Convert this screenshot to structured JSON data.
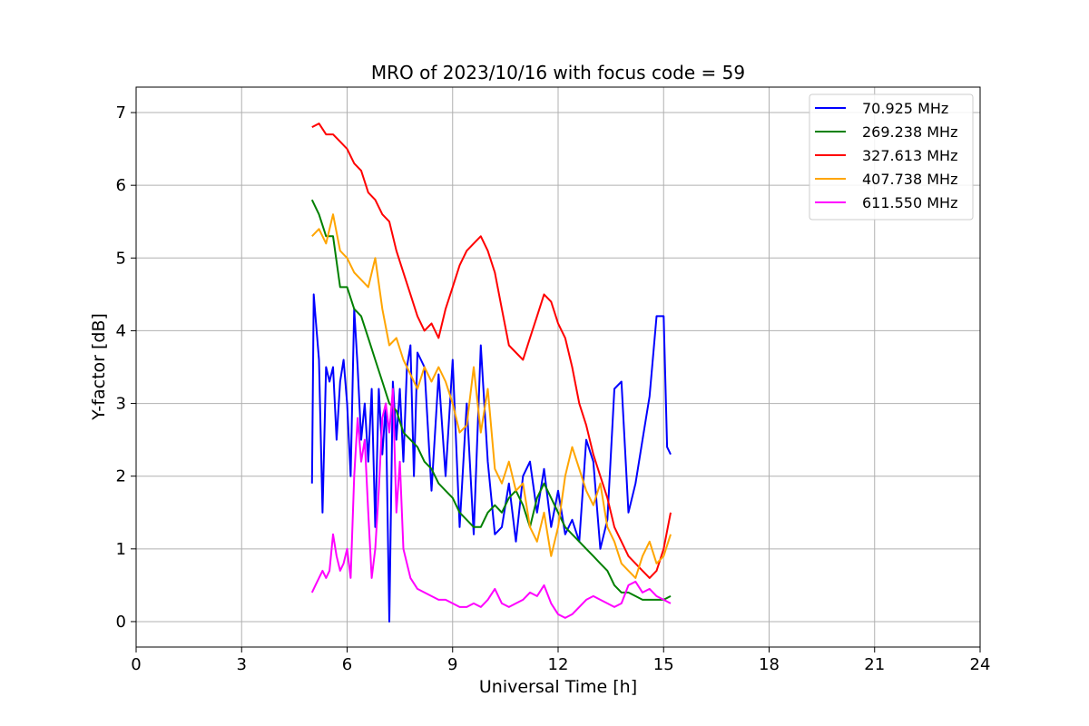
{
  "chart_data": {
    "type": "line",
    "title": "MRO of 2023/10/16 with focus code = 59",
    "xlabel": "Universal Time [h]",
    "ylabel": "Y-factor [dB]",
    "xlim": [
      0,
      24
    ],
    "ylim": [
      -0.35,
      7.35
    ],
    "xticks": [
      0,
      3,
      6,
      9,
      12,
      15,
      18,
      21,
      24
    ],
    "yticks": [
      0,
      1,
      2,
      3,
      4,
      5,
      6,
      7
    ],
    "grid": true,
    "legend_position": "top-right",
    "series": [
      {
        "name": " 70.925 MHz",
        "color": "#0000ff",
        "x": [
          5.0,
          5.05,
          5.1,
          5.2,
          5.3,
          5.4,
          5.5,
          5.6,
          5.7,
          5.8,
          5.9,
          6.0,
          6.1,
          6.2,
          6.3,
          6.4,
          6.5,
          6.6,
          6.7,
          6.8,
          6.9,
          7.0,
          7.1,
          7.2,
          7.3,
          7.4,
          7.5,
          7.6,
          7.7,
          7.8,
          7.9,
          8.0,
          8.2,
          8.4,
          8.6,
          8.8,
          9.0,
          9.2,
          9.4,
          9.6,
          9.8,
          10.0,
          10.2,
          10.4,
          10.6,
          10.8,
          11.0,
          11.2,
          11.4,
          11.6,
          11.8,
          12.0,
          12.2,
          12.4,
          12.6,
          12.8,
          13.0,
          13.2,
          13.4,
          13.6,
          13.8,
          14.0,
          14.2,
          14.4,
          14.6,
          14.8,
          15.0,
          15.1,
          15.2
        ],
        "values": [
          1.9,
          4.5,
          4.2,
          3.6,
          1.5,
          3.5,
          3.3,
          3.5,
          2.5,
          3.3,
          3.6,
          3.0,
          2.0,
          4.3,
          3.5,
          2.5,
          3.0,
          2.2,
          3.2,
          1.3,
          3.2,
          2.3,
          3.0,
          0.0,
          3.3,
          2.5,
          3.2,
          2.2,
          3.5,
          3.8,
          2.0,
          3.7,
          3.5,
          1.8,
          3.4,
          2.0,
          3.6,
          1.3,
          3.0,
          1.2,
          3.8,
          2.2,
          1.2,
          1.3,
          1.9,
          1.1,
          2.0,
          2.2,
          1.5,
          2.1,
          1.3,
          1.8,
          1.2,
          1.4,
          1.1,
          2.5,
          2.2,
          1.0,
          1.4,
          3.2,
          3.3,
          1.5,
          1.9,
          2.5,
          3.1,
          4.2,
          4.2,
          2.4,
          2.3
        ]
      },
      {
        "name": "269.238 MHz",
        "color": "#008000",
        "x": [
          5.0,
          5.2,
          5.4,
          5.6,
          5.8,
          6.0,
          6.2,
          6.4,
          6.6,
          6.8,
          7.0,
          7.2,
          7.4,
          7.6,
          7.8,
          8.0,
          8.2,
          8.4,
          8.6,
          8.8,
          9.0,
          9.2,
          9.4,
          9.6,
          9.8,
          10.0,
          10.2,
          10.4,
          10.6,
          10.8,
          11.0,
          11.2,
          11.4,
          11.6,
          11.8,
          12.0,
          12.2,
          12.4,
          12.6,
          12.8,
          13.0,
          13.2,
          13.4,
          13.6,
          13.8,
          14.0,
          14.2,
          14.4,
          14.6,
          14.8,
          15.0,
          15.2
        ],
        "values": [
          5.8,
          5.6,
          5.3,
          5.3,
          4.6,
          4.6,
          4.3,
          4.2,
          3.9,
          3.6,
          3.3,
          3.0,
          2.9,
          2.6,
          2.5,
          2.4,
          2.2,
          2.1,
          1.9,
          1.8,
          1.7,
          1.5,
          1.4,
          1.3,
          1.3,
          1.5,
          1.6,
          1.5,
          1.7,
          1.8,
          1.6,
          1.3,
          1.7,
          1.9,
          1.7,
          1.5,
          1.3,
          1.2,
          1.1,
          1.0,
          0.9,
          0.8,
          0.7,
          0.5,
          0.4,
          0.4,
          0.35,
          0.3,
          0.3,
          0.3,
          0.3,
          0.35
        ]
      },
      {
        "name": "327.613 MHz",
        "color": "#ff0000",
        "x": [
          5.0,
          5.2,
          5.4,
          5.6,
          5.8,
          6.0,
          6.2,
          6.4,
          6.6,
          6.8,
          7.0,
          7.2,
          7.4,
          7.6,
          7.8,
          8.0,
          8.2,
          8.4,
          8.6,
          8.8,
          9.0,
          9.2,
          9.4,
          9.6,
          9.8,
          10.0,
          10.2,
          10.4,
          10.6,
          10.8,
          11.0,
          11.2,
          11.4,
          11.6,
          11.8,
          12.0,
          12.2,
          12.4,
          12.6,
          12.8,
          13.0,
          13.2,
          13.4,
          13.6,
          13.8,
          14.0,
          14.2,
          14.4,
          14.6,
          14.8,
          15.0,
          15.2
        ],
        "values": [
          6.8,
          6.85,
          6.7,
          6.7,
          6.6,
          6.5,
          6.3,
          6.2,
          5.9,
          5.8,
          5.6,
          5.5,
          5.1,
          4.8,
          4.5,
          4.2,
          4.0,
          4.1,
          3.9,
          4.3,
          4.6,
          4.9,
          5.1,
          5.2,
          5.3,
          5.1,
          4.8,
          4.3,
          3.8,
          3.7,
          3.6,
          3.9,
          4.2,
          4.5,
          4.4,
          4.1,
          3.9,
          3.5,
          3.0,
          2.7,
          2.3,
          2.0,
          1.7,
          1.3,
          1.1,
          0.9,
          0.8,
          0.7,
          0.6,
          0.7,
          1.0,
          1.5
        ]
      },
      {
        "name": "407.738 MHz",
        "color": "#ffa500",
        "x": [
          5.0,
          5.2,
          5.4,
          5.6,
          5.8,
          6.0,
          6.2,
          6.4,
          6.6,
          6.8,
          7.0,
          7.2,
          7.4,
          7.6,
          7.8,
          8.0,
          8.2,
          8.4,
          8.6,
          8.8,
          9.0,
          9.2,
          9.4,
          9.6,
          9.8,
          10.0,
          10.2,
          10.4,
          10.6,
          10.8,
          11.0,
          11.2,
          11.4,
          11.6,
          11.8,
          12.0,
          12.2,
          12.4,
          12.6,
          12.8,
          13.0,
          13.2,
          13.4,
          13.6,
          13.8,
          14.0,
          14.2,
          14.4,
          14.6,
          14.8,
          15.0,
          15.2
        ],
        "values": [
          5.3,
          5.4,
          5.2,
          5.6,
          5.1,
          5.0,
          4.8,
          4.7,
          4.6,
          5.0,
          4.3,
          3.8,
          3.9,
          3.6,
          3.4,
          3.2,
          3.5,
          3.3,
          3.5,
          3.3,
          3.0,
          2.6,
          2.7,
          3.5,
          2.6,
          3.2,
          2.1,
          1.9,
          2.2,
          1.8,
          1.9,
          1.3,
          1.1,
          1.5,
          0.9,
          1.3,
          2.0,
          2.4,
          2.1,
          1.8,
          1.6,
          1.9,
          1.3,
          1.1,
          0.8,
          0.7,
          0.6,
          0.9,
          1.1,
          0.8,
          0.9,
          1.2
        ]
      },
      {
        "name": "611.550 MHz",
        "color": "#ff00ff",
        "x": [
          5.0,
          5.1,
          5.2,
          5.3,
          5.4,
          5.5,
          5.6,
          5.7,
          5.8,
          5.9,
          6.0,
          6.1,
          6.2,
          6.3,
          6.4,
          6.5,
          6.6,
          6.7,
          6.8,
          6.9,
          7.0,
          7.1,
          7.2,
          7.3,
          7.4,
          7.5,
          7.6,
          7.8,
          8.0,
          8.2,
          8.4,
          8.6,
          8.8,
          9.0,
          9.2,
          9.4,
          9.6,
          9.8,
          10.0,
          10.2,
          10.4,
          10.6,
          10.8,
          11.0,
          11.2,
          11.4,
          11.6,
          11.8,
          12.0,
          12.2,
          12.4,
          12.6,
          12.8,
          13.0,
          13.2,
          13.4,
          13.6,
          13.8,
          14.0,
          14.2,
          14.4,
          14.6,
          14.8,
          15.0,
          15.2
        ],
        "values": [
          0.4,
          0.5,
          0.6,
          0.7,
          0.6,
          0.7,
          1.2,
          0.9,
          0.7,
          0.8,
          1.0,
          0.6,
          2.0,
          2.8,
          2.2,
          2.5,
          1.5,
          0.6,
          1.0,
          1.8,
          2.8,
          3.0,
          2.6,
          3.2,
          1.5,
          2.2,
          1.0,
          0.6,
          0.45,
          0.4,
          0.35,
          0.3,
          0.3,
          0.25,
          0.2,
          0.2,
          0.25,
          0.2,
          0.3,
          0.45,
          0.25,
          0.2,
          0.25,
          0.3,
          0.4,
          0.35,
          0.5,
          0.25,
          0.1,
          0.05,
          0.1,
          0.2,
          0.3,
          0.35,
          0.3,
          0.25,
          0.2,
          0.25,
          0.5,
          0.55,
          0.4,
          0.45,
          0.35,
          0.3,
          0.25
        ]
      }
    ]
  }
}
